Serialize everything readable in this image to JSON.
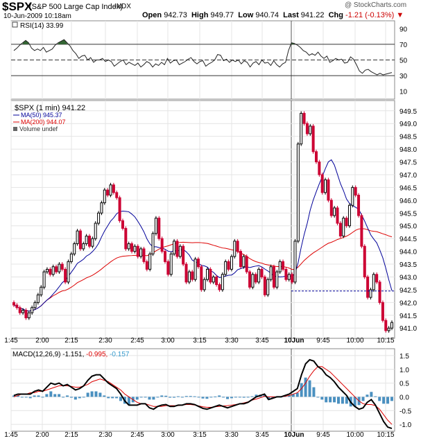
{
  "header": {
    "symbol": "$SPX",
    "name": "(S&P 500 Large Cap Index)",
    "exchange": "INDX",
    "credit": "@ StockCharts.com",
    "datetime": "10-Jun-2009 10:18am",
    "open_label": "Open",
    "open": "942.73",
    "high_label": "High",
    "high": "949.77",
    "low_label": "Low",
    "low": "940.74",
    "last_label": "Last",
    "last": "941.22",
    "chg_label": "Chg",
    "chg": "-1.21 (-0.13%)"
  },
  "colors": {
    "up": "#000000",
    "down": "#cc0033",
    "ma50": "#000099",
    "ma200": "#dd0000",
    "rsi_fill": "#336633",
    "hist": "#4a90c0",
    "macd_signal": "#dd0000",
    "macd_params": "#3399cc"
  },
  "time_axis": [
    "1:45",
    "2:00",
    "2:15",
    "2:30",
    "2:45",
    "3:00",
    "3:15",
    "3:30",
    "3:45",
    "10Jun",
    "9:45",
    "10:00",
    "10:15"
  ],
  "chart_data": [
    {
      "type": "line",
      "panel": "RSI",
      "legend": "RSI(14) 33.99",
      "yticks": [
        10,
        30,
        50,
        70,
        90
      ],
      "ylim": [
        0,
        100
      ],
      "reference_lines": [
        30,
        50,
        70
      ],
      "values": [
        62,
        65,
        69,
        72,
        75,
        72,
        65,
        62,
        64,
        62,
        66,
        60,
        62,
        64,
        69,
        72,
        74,
        76,
        72,
        68,
        62,
        58,
        52,
        55,
        56,
        50,
        53,
        47,
        50,
        50,
        52,
        48,
        50,
        48,
        42,
        45,
        48,
        50,
        44,
        47,
        45,
        43,
        46,
        41,
        44,
        48,
        46,
        41,
        45,
        43,
        47,
        44,
        52,
        46,
        49,
        50,
        44,
        46,
        48,
        51,
        53,
        48,
        45,
        48,
        49,
        42,
        45,
        47,
        50,
        57,
        56,
        49,
        51,
        47,
        50,
        48,
        50,
        45,
        49,
        47,
        41,
        46,
        48,
        44,
        50,
        46,
        47,
        43,
        49,
        44,
        41,
        45,
        47,
        62,
        72,
        71,
        69,
        66,
        62,
        60,
        56,
        58,
        56,
        60,
        55,
        52,
        55,
        47,
        49,
        52,
        50,
        51,
        46,
        47,
        54,
        51,
        44,
        36,
        33,
        37,
        38,
        35,
        33,
        31,
        33,
        31,
        32,
        33,
        34
      ]
    },
    {
      "type": "candlestick",
      "panel": "Price",
      "legend": [
        "$SPX (1 min) 941.22",
        "MA(50) 945.37",
        "MA(200) 944.07",
        "Volume undef"
      ],
      "yticks": [
        941.0,
        941.5,
        942.0,
        942.5,
        943.0,
        943.5,
        944.0,
        944.5,
        945.0,
        945.5,
        946.0,
        946.5,
        947.0,
        947.5,
        948.0,
        948.5,
        949.0,
        949.5
      ],
      "ylim": [
        940.6,
        949.9
      ],
      "last_marker": 942.45,
      "close": [
        941.9,
        941.8,
        941.6,
        941.7,
        941.4,
        941.6,
        941.8,
        942.0,
        942.3,
        942.6,
        943.2,
        943.3,
        943.1,
        943.4,
        943.2,
        943.5,
        943.3,
        942.8,
        943.6,
        943.9,
        944.3,
        944.8,
        944.1,
        944.3,
        944.6,
        944.2,
        944.5,
        945.1,
        945.5,
        945.9,
        946.4,
        946.2,
        946.6,
        946.3,
        946.1,
        945.2,
        944.9,
        944.1,
        944.3,
        944.0,
        944.2,
        943.8,
        944.1,
        943.6,
        943.3,
        943.9,
        944.7,
        945.3,
        944.5,
        944.0,
        943.6,
        943.1,
        943.9,
        944.4,
        943.8,
        944.2,
        943.5,
        942.8,
        943.2,
        942.9,
        943.7,
        943.4,
        942.5,
        942.9,
        943.3,
        942.8,
        943.0,
        942.7,
        942.5,
        943.1,
        943.6,
        943.3,
        943.8,
        944.4,
        944.0,
        943.4,
        943.8,
        943.2,
        942.6,
        943.1,
        942.8,
        943.3,
        943.0,
        942.3,
        942.9,
        943.4,
        942.6,
        943.2,
        943.6,
        943.3,
        942.9,
        943.1,
        942.8,
        944.4,
        948.2,
        949.4,
        949.0,
        948.6,
        948.9,
        947.9,
        947.5,
        947.0,
        946.3,
        946.8,
        946.0,
        945.4,
        945.7,
        945.1,
        944.6,
        945.3,
        945.0,
        945.8,
        946.5,
        946.2,
        945.4,
        944.2,
        943.0,
        942.2,
        942.5,
        943.1,
        942.8,
        942.0,
        941.3,
        940.9,
        941.0,
        941.22
      ]
    },
    {
      "type": "line",
      "panel": "MACD",
      "legend": "MACD(12,26,9) -1.151, -0.995, -0.157",
      "legend_parts": {
        "label": "MACD(12,26,9)",
        "macd": "-1.151,",
        "signal": "-0.995,",
        "hist": "-0.157"
      },
      "yticks": [
        -1.0,
        -0.5,
        0.0,
        0.5,
        1.0,
        1.5
      ],
      "ylim": [
        -1.25,
        1.75
      ],
      "series": [
        {
          "name": "MACD",
          "values": [
            0.05,
            0.1,
            0.1,
            0.1,
            0.1,
            0.2,
            0.25,
            0.2,
            0.35,
            0.5,
            0.45,
            0.5,
            0.4,
            0.45,
            0.35,
            0.25,
            0.3,
            0.4,
            0.6,
            0.75,
            0.8,
            0.8,
            0.65,
            0.5,
            0.4,
            0.3,
            0.1,
            -0.15,
            -0.3,
            -0.3,
            -0.3,
            -0.25,
            -0.25,
            -0.4,
            -0.45,
            -0.35,
            -0.3,
            -0.28,
            -0.35,
            -0.35,
            -0.3,
            -0.3,
            -0.25,
            -0.25,
            -0.28,
            -0.35,
            -0.42,
            -0.45,
            -0.4,
            -0.35,
            -0.3,
            -0.35,
            -0.4,
            -0.35,
            -0.3,
            -0.25,
            -0.25,
            -0.2,
            -0.1,
            0.0,
            0.05,
            0.1,
            -0.1,
            -0.05,
            0.0,
            0.0,
            0.05,
            0.1,
            0.2,
            0.3,
            0.8,
            1.2,
            1.35,
            1.3,
            1.1,
            1.0,
            0.8,
            0.7,
            0.55,
            0.35,
            0.2,
            0.05,
            -0.2,
            -0.35,
            -0.45,
            -0.4,
            -0.2,
            -0.1,
            -0.3,
            -0.6,
            -0.9,
            -1.1,
            -1.15
          ]
        },
        {
          "name": "Signal",
          "values": [
            0.0,
            0.05,
            0.1,
            0.1,
            0.15,
            0.15,
            0.2,
            0.2,
            0.25,
            0.3,
            0.35,
            0.4,
            0.4,
            0.4,
            0.38,
            0.35,
            0.35,
            0.4,
            0.45,
            0.55,
            0.6,
            0.65,
            0.6,
            0.55,
            0.45,
            0.35,
            0.25,
            0.1,
            0.0,
            -0.1,
            -0.2,
            -0.25,
            -0.25,
            -0.3,
            -0.35,
            -0.35,
            -0.35,
            -0.32,
            -0.32,
            -0.32,
            -0.32,
            -0.3,
            -0.28,
            -0.28,
            -0.3,
            -0.33,
            -0.36,
            -0.38,
            -0.38,
            -0.36,
            -0.35,
            -0.33,
            -0.32,
            -0.3,
            -0.28,
            -0.25,
            -0.22,
            -0.18,
            -0.12,
            -0.08,
            -0.03,
            0.02,
            0.0,
            0.0,
            0.0,
            0.0,
            0.02,
            0.05,
            0.1,
            0.15,
            0.3,
            0.5,
            0.75,
            0.95,
            1.1,
            1.1,
            1.0,
            0.9,
            0.75,
            0.6,
            0.45,
            0.3,
            0.15,
            0.0,
            -0.15,
            -0.25,
            -0.28,
            -0.28,
            -0.32,
            -0.45,
            -0.65,
            -0.85,
            -1.0
          ]
        }
      ]
    }
  ]
}
